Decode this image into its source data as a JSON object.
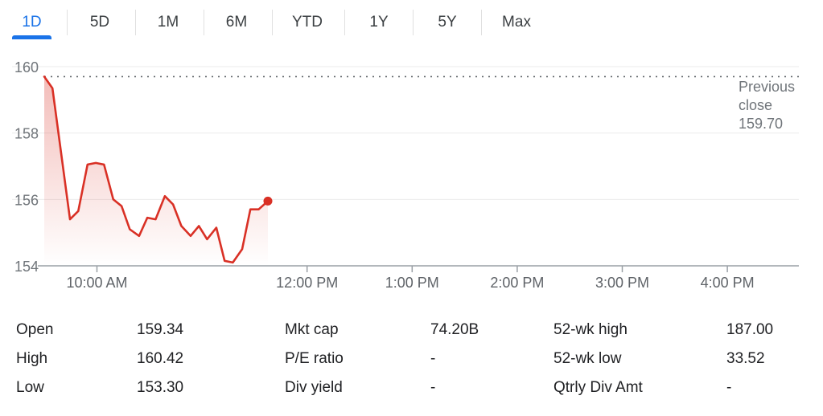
{
  "tabs": [
    {
      "label": "1D",
      "active": true
    },
    {
      "label": "5D",
      "active": false
    },
    {
      "label": "1M",
      "active": false
    },
    {
      "label": "6M",
      "active": false
    },
    {
      "label": "YTD",
      "active": false
    },
    {
      "label": "1Y",
      "active": false
    },
    {
      "label": "5Y",
      "active": false
    },
    {
      "label": "Max",
      "active": false
    }
  ],
  "colors": {
    "accent": "#1a73e8",
    "line": "#d93025",
    "grid": "#ebebeb",
    "axis": "#9aa0a6"
  },
  "chart_data": {
    "type": "line",
    "x_ticks": [
      "10:00 AM",
      "12:00 PM",
      "1:00 PM",
      "2:00 PM",
      "3:00 PM",
      "4:00 PM"
    ],
    "y_ticks": [
      "160",
      "158",
      "156",
      "154"
    ],
    "ylim": [
      154,
      160
    ],
    "grid": true,
    "series": [
      {
        "x": [
          9.5,
          9.58,
          9.75,
          9.83,
          9.92,
          10.0,
          10.08,
          10.17,
          10.25,
          10.33,
          10.42,
          10.5,
          10.58,
          10.67,
          10.75,
          10.83,
          10.92,
          11.0,
          11.08,
          11.17,
          11.25,
          11.33,
          11.42,
          11.5,
          11.58,
          11.67
        ],
        "y": [
          159.7,
          159.35,
          155.4,
          155.65,
          157.05,
          157.1,
          157.05,
          156.0,
          155.8,
          155.1,
          154.9,
          155.45,
          155.4,
          156.1,
          155.85,
          155.2,
          154.9,
          155.2,
          154.8,
          155.15,
          154.15,
          154.1,
          154.5,
          155.7,
          155.7,
          155.95
        ]
      }
    ],
    "previous_close": {
      "label_line1": "Previous",
      "label_line2": "close",
      "value_text": "159.70",
      "value": 159.7
    }
  },
  "stats": {
    "col1": [
      {
        "label": "Open",
        "value": "159.34"
      },
      {
        "label": "High",
        "value": "160.42"
      },
      {
        "label": "Low",
        "value": "153.30"
      }
    ],
    "col2": [
      {
        "label": "Mkt cap",
        "value": "74.20B"
      },
      {
        "label": "P/E ratio",
        "value": "-"
      },
      {
        "label": "Div yield",
        "value": "-"
      }
    ],
    "col3": [
      {
        "label": "52-wk high",
        "value": "187.00"
      },
      {
        "label": "52-wk low",
        "value": "33.52"
      },
      {
        "label": "Qtrly Div Amt",
        "value": "-"
      }
    ]
  }
}
